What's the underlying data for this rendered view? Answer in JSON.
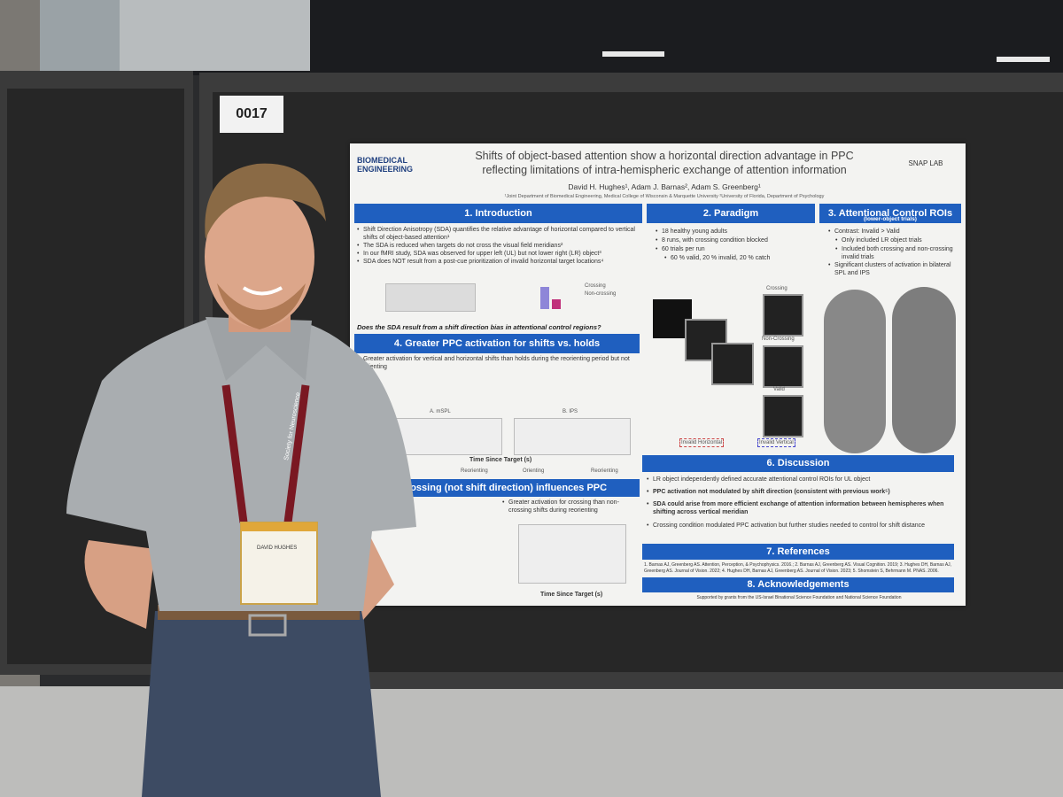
{
  "board_number": "0017",
  "poster": {
    "logo_left": "BIOMEDICAL ENGINEERING",
    "logo_right": "SNAP LAB",
    "title": "Shifts of object-based attention show a horizontal direction advantage in PPC reflecting limitations of intra-hemispheric exchange of attention information",
    "authors": "David H. Hughes¹, Adam J. Barnas², Adam S. Greenberg¹",
    "affiliation": "¹Joint Department of Biomedical Engineering, Medical College of Wisconsin & Marquette University ²University of Florida, Department of Psychology",
    "introduction": {
      "heading": "1. Introduction",
      "items": [
        "Shift Direction Anisotropy (SDA) quantifies the relative advantage of horizontal compared to vertical shifts of object-based attention¹",
        "The SDA is reduced when targets do not cross the visual field meridians²",
        "In our fMRI study, SDA was observed for upper left (UL) but not lower right (LR) object³",
        "SDA does NOT result from a post-cue prioritization of invalid horizontal target locations⁴"
      ],
      "legend": [
        "Crossing",
        "Non-crossing"
      ],
      "question": "Does the SDA result from a shift direction bias in attentional control regions?"
    },
    "paradigm": {
      "heading": "2. Paradigm",
      "items": [
        "18 healthy young adults",
        "8 runs, with crossing condition blocked",
        "60 trials per run",
        "60 % valid, 20 % invalid, 20 % catch"
      ],
      "conditions": [
        "Crossing",
        "Non-Crossing",
        "Valid",
        "Invalid Horizontal",
        "Invalid Vertical"
      ]
    },
    "rois": {
      "heading": "3. Attentional Control ROIs",
      "subheading": "(lower-object trials)",
      "items": [
        "Contrast: Invalid > Valid",
        "Only included LR object trials",
        "Included both crossing and non-crossing invalid trials",
        "Significant clusters of activation in bilateral SPL and IPS"
      ]
    },
    "activation": {
      "heading": "4. Greater PPC activation for shifts vs. holds",
      "items": [
        "Greater activation for vertical and horizontal shifts than holds during the reorienting period but not orienting"
      ],
      "panels": [
        "A. mSPL",
        "B. IPS"
      ],
      "xlabel": "Time Since Target (s)",
      "phases": [
        "Reorienting",
        "Orienting",
        "Reorienting"
      ]
    },
    "crossing": {
      "heading": "an crossing (not shift direction) influences PPC",
      "items": [
        "Greater activation for crossing than non-crossing shifts during reorienting"
      ],
      "xlabel": "Time Since Target (s)"
    },
    "discussion": {
      "heading": "6. Discussion",
      "items": [
        "LR object independently defined accurate attentional control ROIs for UL object",
        "PPC activation not modulated by shift direction (consistent with previous work⁵)",
        "SDA could arise from more efficient exchange of attention information between hemispheres when shifting across vertical meridian",
        "Crossing condition modulated PPC activation but further studies needed to control for shift distance"
      ]
    },
    "references": {
      "heading": "7. References",
      "text": "1. Barnas AJ, Greenberg AS. Attention, Perception, & Psychophysics. 2016.; 2. Barnas AJ, Greenberg AS. Visual Cognition. 2019; 3. Hughes DH, Barnas AJ, Greenberg AS. Journal of Vision. 2022; 4. Hughes DH, Barnas AJ, Greenberg AS. Journal of Vision. 2023; 5. Shomstein S, Behrmann M. PNAS. 2006."
    },
    "acknowledgements": {
      "heading": "8. Acknowledgements",
      "text": "Supported by grants from the US-Israel Binational Science Foundation and National Science Foundation"
    }
  },
  "badge": {
    "name": "DAVID HUGHES",
    "lanyard": "Society for Neuroscience"
  }
}
